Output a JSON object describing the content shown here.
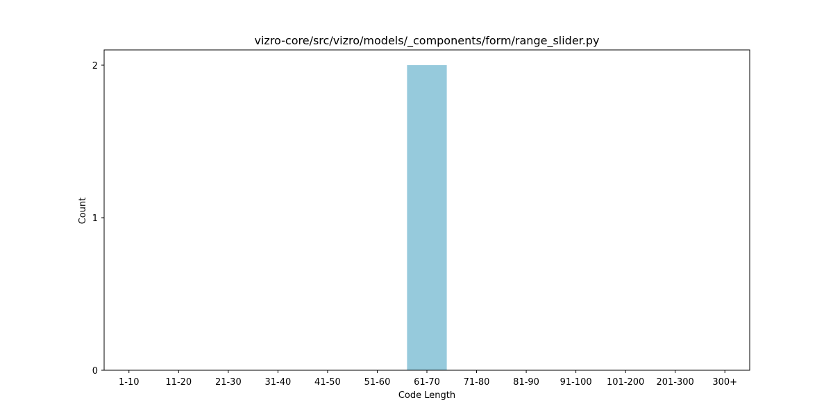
{
  "chart_data": {
    "type": "bar",
    "title": "vizro-core/src/vizro/models/_components/form/range_slider.py",
    "xlabel": "Code Length",
    "ylabel": "Count",
    "categories": [
      "1-10",
      "11-20",
      "21-30",
      "31-40",
      "41-50",
      "51-60",
      "61-70",
      "71-80",
      "81-90",
      "91-100",
      "101-200",
      "201-300",
      "300+"
    ],
    "values": [
      0,
      0,
      0,
      0,
      0,
      0,
      2,
      0,
      0,
      0,
      0,
      0,
      0
    ],
    "yticks": [
      0,
      1,
      2
    ],
    "ylim": [
      0,
      2.1
    ],
    "bar_color": "#96cadc",
    "grid": false
  }
}
